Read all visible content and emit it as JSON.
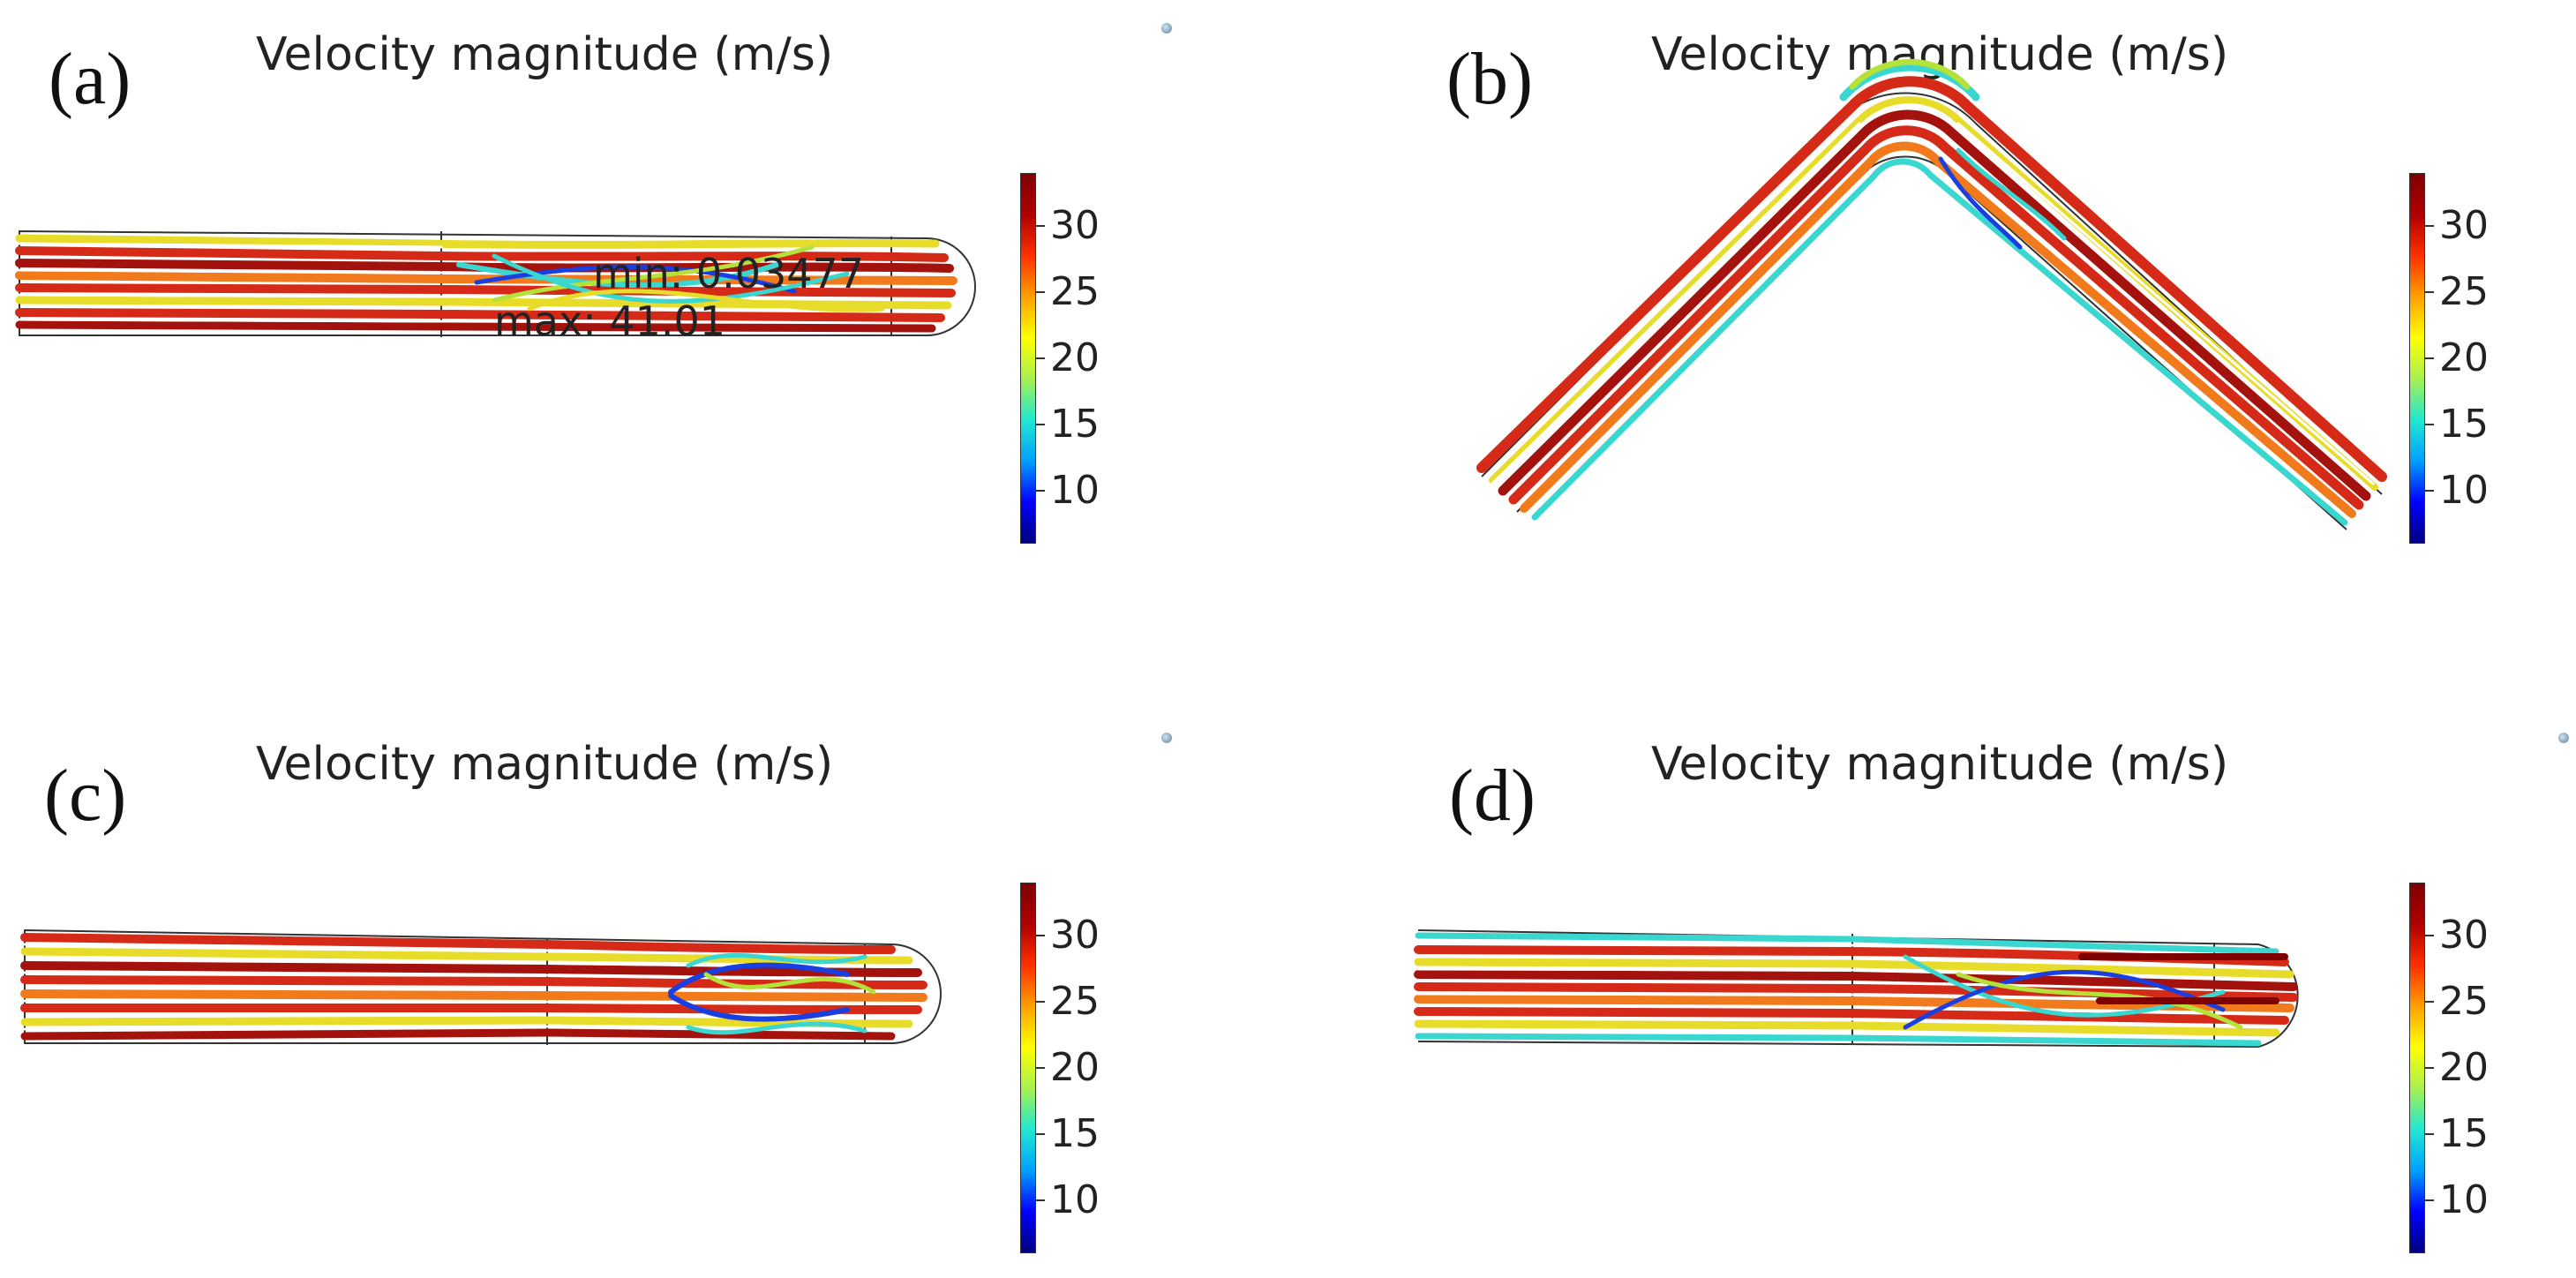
{
  "panels": [
    {
      "letter": "(a)",
      "title": "Velocity magnitude (m/s)",
      "annotation_min": "min: 0.03477",
      "annotation_max": "max: 41.01"
    },
    {
      "letter": "(b)",
      "title": "Velocity magnitude (m/s)"
    },
    {
      "letter": "(c)",
      "title": "Velocity magnitude (m/s)"
    },
    {
      "letter": "(d)",
      "title": "Velocity magnitude (m/s)"
    }
  ],
  "colorbar": {
    "ticks": [
      "30",
      "25",
      "20",
      "15",
      "10"
    ],
    "tick_values": [
      30,
      25,
      20,
      15,
      10
    ],
    "range": [
      6,
      34
    ],
    "colors": [
      "#00007f",
      "#0000ff",
      "#00a0ff",
      "#20e8d0",
      "#a8f050",
      "#ffff00",
      "#ffa000",
      "#ff3000",
      "#b00000",
      "#7f0000"
    ]
  },
  "streamline_colors": {
    "red": "#d42a17",
    "darkred": "#a3120c",
    "orange": "#f07a1c",
    "yellow": "#e8dc2a",
    "lime": "#b4e23a",
    "cyan": "#3ad6d0",
    "blue": "#1a3fe0"
  }
}
